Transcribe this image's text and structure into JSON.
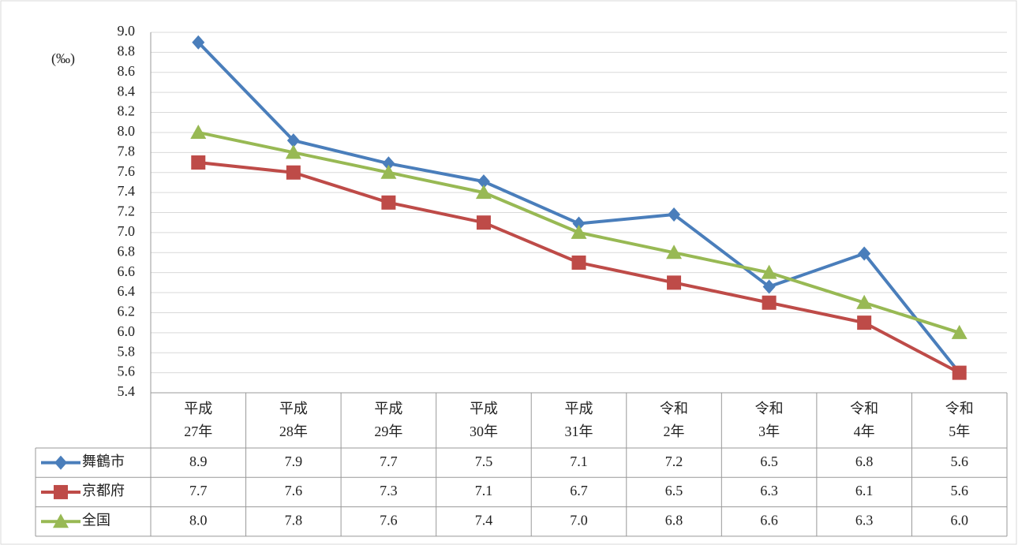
{
  "chart_data": {
    "type": "line",
    "y_label": "(‰)",
    "categories": [
      [
        "平成",
        "27年"
      ],
      [
        "平成",
        "28年"
      ],
      [
        "平成",
        "29年"
      ],
      [
        "平成",
        "30年"
      ],
      [
        "平成",
        "31年"
      ],
      [
        "令和",
        "2年"
      ],
      [
        "令和",
        "3年"
      ],
      [
        "令和",
        "4年"
      ],
      [
        "令和",
        "5年"
      ]
    ],
    "series": [
      {
        "name": "舞鶴市",
        "color": "#4a7ebb",
        "marker": "diamond",
        "values": [
          8.9,
          7.92,
          7.69,
          7.51,
          7.09,
          7.18,
          6.46,
          6.79,
          5.6
        ],
        "value_labels": [
          "8.9",
          "7.9",
          "7.7",
          "7.5",
          "7.1",
          "7.2",
          "6.5",
          "6.8",
          "5.6"
        ]
      },
      {
        "name": "京都府",
        "color": "#be4b48",
        "marker": "square",
        "values": [
          7.7,
          7.6,
          7.3,
          7.1,
          6.7,
          6.5,
          6.3,
          6.1,
          5.6
        ],
        "value_labels": [
          "7.7",
          "7.6",
          "7.3",
          "7.1",
          "6.7",
          "6.5",
          "6.3",
          "6.1",
          "5.6"
        ]
      },
      {
        "name": "全国",
        "color": "#98b954",
        "marker": "triangle",
        "values": [
          8,
          7.8,
          7.6,
          7.4,
          7,
          6.8,
          6.6,
          6.3,
          6
        ],
        "value_labels": [
          "8.0",
          "7.8",
          "7.6",
          "7.4",
          "7.0",
          "6.8",
          "6.6",
          "6.3",
          "6.0"
        ]
      }
    ],
    "ylim": [
      5.4,
      9.0
    ],
    "yticks": [
      5.4,
      5.6,
      5.8,
      {
        "value": 6,
        "label": "6.0"
      },
      6.2,
      6.4,
      6.6,
      6.8,
      {
        "value": 7,
        "label": "7.0"
      },
      7.2,
      7.4,
      7.6,
      7.8,
      {
        "value": 8,
        "label": "8.0"
      },
      8.2,
      8.4,
      8.6,
      8.8,
      {
        "value": 9,
        "label": "9.0"
      }
    ],
    "grid": true
  }
}
